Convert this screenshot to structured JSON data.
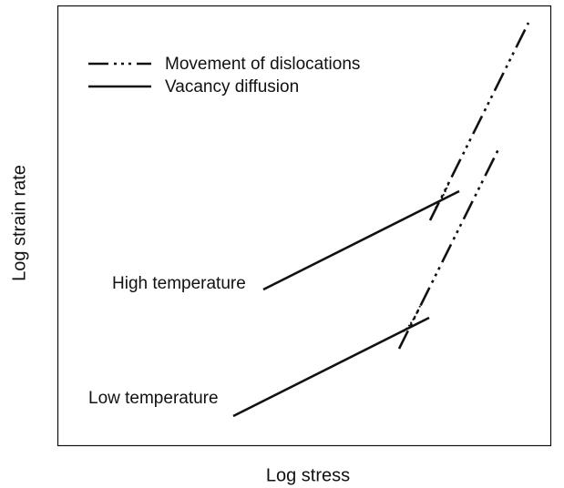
{
  "legend": {
    "entries": [
      "Movement of dislocations",
      "Vacancy diffusion"
    ]
  },
  "labels": {
    "high": "High temperature",
    "low": "Low temperature"
  },
  "axes": {
    "x_label": "Log stress",
    "y_label": "Log strain rate"
  }
}
